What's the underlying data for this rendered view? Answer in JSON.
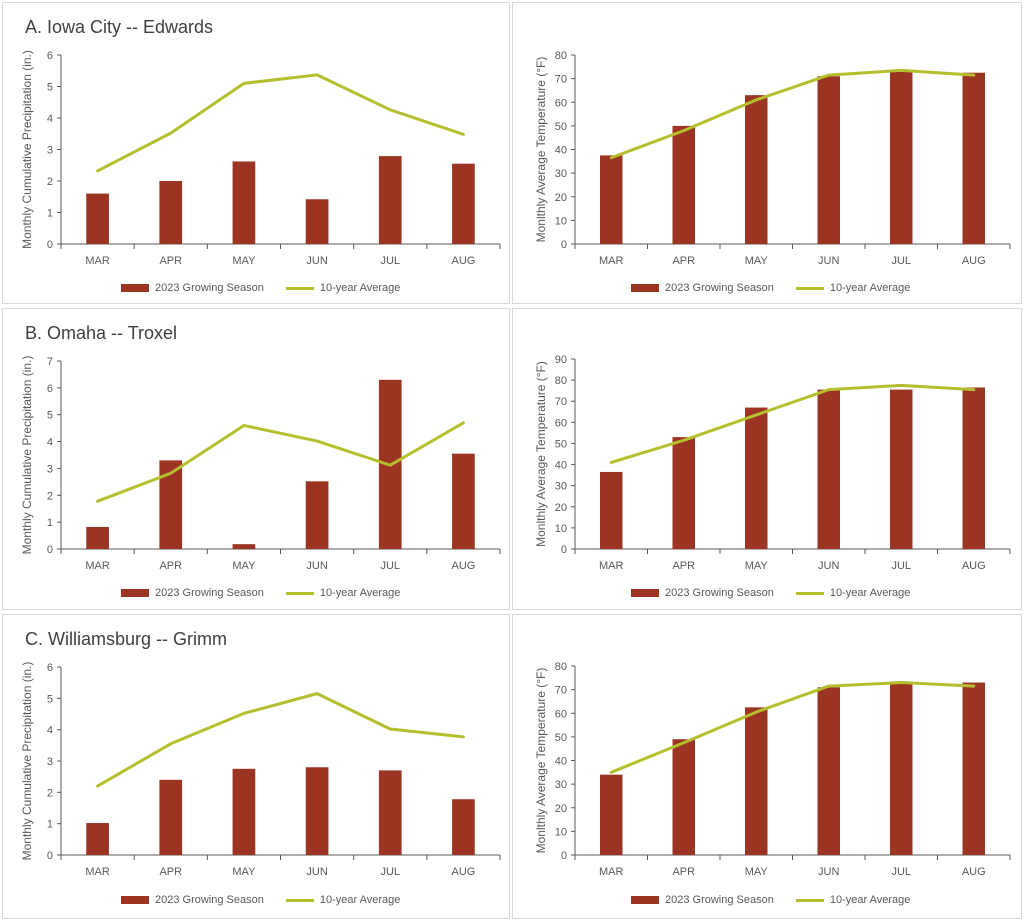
{
  "colors": {
    "bar": "#9b3423",
    "line": "#b5bf2e",
    "axis": "#595959",
    "border": "#d9d9d9"
  },
  "legend": {
    "bar_label": "2023 Growing Season",
    "line_label": "10-year Average"
  },
  "chart_data": [
    {
      "type": "bar",
      "title": "A. Iowa City -- Edwards",
      "categories": [
        "MAR",
        "APR",
        "MAY",
        "JUN",
        "JUL",
        "AUG"
      ],
      "ylabel": "Monthly Cumulative Precipitation (in.)",
      "ylim": [
        0,
        6
      ],
      "ystep": 1,
      "series": [
        {
          "name": "2023 Growing Season",
          "kind": "bar",
          "values": [
            1.6,
            2.0,
            2.62,
            1.42,
            2.79,
            2.55
          ]
        },
        {
          "name": "10-year Average",
          "kind": "line",
          "values": [
            2.32,
            3.52,
            5.1,
            5.37,
            4.26,
            3.48
          ]
        }
      ],
      "legend_position": "bottom",
      "grid": false
    },
    {
      "type": "bar",
      "title": "",
      "categories": [
        "MAR",
        "APR",
        "MAY",
        "JUN",
        "JUL",
        "AUG"
      ],
      "ylabel": "Monlthly Average Temperature (°F)",
      "ylim": [
        0,
        80
      ],
      "ystep": 10,
      "series": [
        {
          "name": "2023 Growing Season",
          "kind": "bar",
          "values": [
            37.5,
            50,
            63,
            71,
            73.5,
            72.5
          ]
        },
        {
          "name": "10-year Average",
          "kind": "line",
          "values": [
            36.5,
            48,
            61,
            71.5,
            73.5,
            71.5
          ]
        }
      ],
      "legend_position": "bottom",
      "grid": false
    },
    {
      "type": "bar",
      "title": "B. Omaha -- Troxel",
      "categories": [
        "MAR",
        "APR",
        "MAY",
        "JUN",
        "JUL",
        "AUG"
      ],
      "ylabel": "Monthly Cumulative Precipitation (in.)",
      "ylim": [
        0,
        7
      ],
      "ystep": 1,
      "series": [
        {
          "name": "2023 Growing Season",
          "kind": "bar",
          "values": [
            0.82,
            3.3,
            0.18,
            2.52,
            6.3,
            3.55
          ]
        },
        {
          "name": "10-year Average",
          "kind": "line",
          "values": [
            1.78,
            2.82,
            4.6,
            4.02,
            3.12,
            4.7
          ]
        }
      ],
      "legend_position": "bottom",
      "grid": false
    },
    {
      "type": "bar",
      "title": "",
      "categories": [
        "MAR",
        "APR",
        "MAY",
        "JUN",
        "JUL",
        "AUG"
      ],
      "ylabel": "Monlthly Average Temperature (°F)",
      "ylim": [
        0,
        90
      ],
      "ystep": 10,
      "series": [
        {
          "name": "2023 Growing Season",
          "kind": "bar",
          "values": [
            36.5,
            53,
            67,
            75.5,
            75.5,
            76.5
          ]
        },
        {
          "name": "10-year Average",
          "kind": "line",
          "values": [
            41,
            51.5,
            63.5,
            75.5,
            77.5,
            75.5
          ]
        }
      ],
      "legend_position": "bottom",
      "grid": false
    },
    {
      "type": "bar",
      "title": "C. Williamsburg -- Grimm",
      "categories": [
        "MAR",
        "APR",
        "MAY",
        "JUN",
        "JUL",
        "AUG"
      ],
      "ylabel": "Monthly Cumulative Precipitation (in.)",
      "ylim": [
        0,
        6
      ],
      "ystep": 1,
      "series": [
        {
          "name": "2023 Growing Season",
          "kind": "bar",
          "values": [
            1.02,
            2.4,
            2.75,
            2.8,
            2.7,
            1.78
          ]
        },
        {
          "name": "10-year Average",
          "kind": "line",
          "values": [
            2.2,
            3.55,
            4.52,
            5.15,
            4.02,
            3.77
          ]
        }
      ],
      "legend_position": "bottom",
      "grid": false
    },
    {
      "type": "bar",
      "title": "",
      "categories": [
        "MAR",
        "APR",
        "MAY",
        "JUN",
        "JUL",
        "AUG"
      ],
      "ylabel": "Monlthly Average Temperature (°F)",
      "ylim": [
        0,
        80
      ],
      "ystep": 10,
      "series": [
        {
          "name": "2023 Growing Season",
          "kind": "bar",
          "values": [
            34,
            49,
            62.5,
            71,
            72.5,
            73
          ]
        },
        {
          "name": "10-year Average",
          "kind": "line",
          "values": [
            35,
            47.5,
            60.5,
            71.5,
            73,
            71.5
          ]
        }
      ],
      "legend_position": "bottom",
      "grid": false
    }
  ]
}
